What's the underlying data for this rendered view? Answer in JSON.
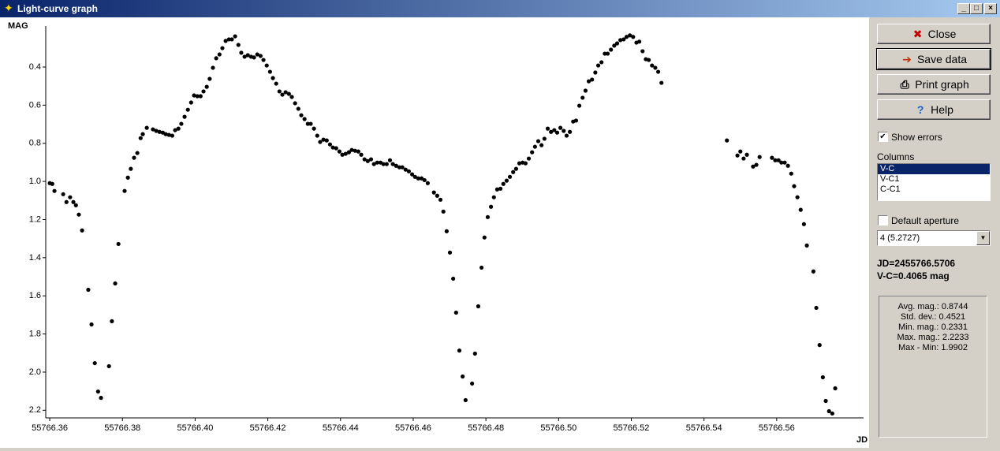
{
  "window": {
    "title": "Light-curve graph"
  },
  "chart_data": {
    "type": "scatter",
    "ylabel": "MAG",
    "xlabel": "JD",
    "color": "#000000",
    "xlim": [
      55766.3589,
      55766.5839
    ],
    "ylim": [
      2.24,
      0.185
    ],
    "xticks": [
      55766.36,
      55766.38,
      {
        "value": 55766.4,
        "label": "55766.40"
      },
      55766.42,
      55766.44,
      55766.46,
      55766.48,
      {
        "value": 55766.5,
        "label": "55766.50"
      },
      55766.52,
      55766.54,
      55766.56
    ],
    "yticks": [
      0.4,
      0.6,
      0.8,
      {
        "value": 1,
        "label": "1.0"
      },
      1.2,
      1.4,
      1.6,
      1.8,
      {
        "value": 2,
        "label": "2.0"
      },
      2.2
    ],
    "x": [
      55766.36,
      55766.3607,
      55766.3613,
      55766.3637,
      55766.3646,
      55766.3656,
      55766.3665,
      55766.3672,
      55766.368,
      55766.3689,
      55766.3706,
      55766.3715,
      55766.3724,
      55766.3733,
      55766.3741,
      55766.3763,
      55766.3771,
      55766.378,
      55766.3789,
      55766.3806,
      55766.3815,
      55766.3823,
      55766.3832,
      55766.3841,
      55766.385,
      55766.3856,
      55766.3867,
      55766.3884,
      55766.3893,
      55766.3902,
      55766.3911,
      55766.3919,
      55766.3928,
      55766.3937,
      55766.3945,
      55766.3954,
      55766.3962,
      55766.3971,
      55766.398,
      55766.3989,
      55766.3997,
      55766.4006,
      55766.4015,
      55766.4023,
      55766.4032,
      55766.404,
      55766.4049,
      55766.4058,
      55766.4067,
      55766.4075,
      55766.4084,
      55766.4093,
      55766.4101,
      55766.411,
      55766.4119,
      55766.4127,
      55766.4136,
      55766.4145,
      55766.4154,
      55766.4162,
      55766.4171,
      55766.418,
      55766.4188,
      55766.4197,
      55766.4206,
      55766.4214,
      55766.4223,
      55766.4232,
      55766.424,
      55766.4249,
      55766.4258,
      55766.4266,
      55766.4275,
      55766.4284,
      55766.4292,
      55766.4301,
      55766.431,
      55766.4318,
      55766.4327,
      55766.4336,
      55766.4344,
      55766.4353,
      55766.4362,
      55766.4371,
      55766.4379,
      55766.4388,
      55766.4397,
      55766.4405,
      55766.4414,
      55766.4423,
      55766.4431,
      55766.444,
      55766.4449,
      55766.4457,
      55766.4466,
      55766.4475,
      55766.4484,
      55766.4492,
      55766.4501,
      55766.451,
      55766.4518,
      55766.4527,
      55766.4536,
      55766.4544,
      55766.4553,
      55766.4562,
      55766.457,
      55766.4579,
      55766.4588,
      55766.4597,
      55766.4605,
      55766.4614,
      55766.4623,
      55766.4631,
      55766.464,
      55766.4657,
      55766.4666,
      55766.4675,
      55766.4683,
      55766.4692,
      55766.4701,
      55766.471,
      55766.4718,
      55766.4727,
      55766.4736,
      55766.4744,
      55766.4762,
      55766.477,
      55766.4779,
      55766.4788,
      55766.4796,
      55766.4805,
      55766.4814,
      55766.4822,
      55766.4831,
      55766.484,
      55766.4848,
      55766.4857,
      55766.4866,
      55766.4875,
      55766.4883,
      55766.4892,
      55766.4901,
      55766.4909,
      55766.4918,
      55766.4927,
      55766.4935,
      55766.4944,
      55766.4953,
      55766.4961,
      55766.497,
      55766.4979,
      55766.4988,
      55766.4996,
      55766.5005,
      55766.5014,
      55766.5022,
      55766.5031,
      55766.504,
      55766.5048,
      55766.5057,
      55766.5066,
      55766.5074,
      55766.5083,
      55766.5092,
      55766.5101,
      55766.5109,
      55766.5118,
      55766.5127,
      55766.5135,
      55766.5144,
      55766.5153,
      55766.5161,
      55766.517,
      55766.5179,
      55766.5187,
      55766.5196,
      55766.5205,
      55766.5214,
      55766.5222,
      55766.5231,
      55766.524,
      55766.5248,
      55766.5257,
      55766.5266,
      55766.5274,
      55766.5283,
      55766.5463,
      55766.5492,
      55766.55,
      55766.5509,
      55766.5518,
      55766.5535,
      55766.5544,
      55766.5553,
      55766.5587,
      55766.5596,
      55766.5605,
      55766.5613,
      55766.5622,
      55766.5631,
      55766.564,
      55766.5648,
      55766.5657,
      55766.5666,
      55766.5675,
      55766.5683,
      55766.5701,
      55766.5709,
      55766.5718,
      55766.5727,
      55766.5735,
      55766.5744,
      55766.5753,
      55766.5761
    ],
    "values": [
      1.009,
      1.013,
      1.05,
      1.067,
      1.108,
      1.083,
      1.108,
      1.125,
      1.174,
      1.257,
      1.568,
      1.75,
      1.953,
      2.102,
      2.135,
      1.969,
      1.733,
      1.535,
      1.328,
      1.05,
      0.98,
      0.934,
      0.876,
      0.851,
      0.773,
      0.752,
      0.719,
      0.727,
      0.735,
      0.74,
      0.744,
      0.752,
      0.756,
      0.76,
      0.731,
      0.723,
      0.698,
      0.661,
      0.624,
      0.586,
      0.549,
      0.553,
      0.553,
      0.528,
      0.504,
      0.462,
      0.404,
      0.354,
      0.334,
      0.301,
      0.263,
      0.255,
      0.255,
      0.239,
      0.284,
      0.325,
      0.346,
      0.338,
      0.346,
      0.35,
      0.334,
      0.342,
      0.363,
      0.392,
      0.425,
      0.458,
      0.487,
      0.528,
      0.545,
      0.532,
      0.541,
      0.557,
      0.59,
      0.619,
      0.653,
      0.673,
      0.698,
      0.698,
      0.723,
      0.76,
      0.793,
      0.781,
      0.785,
      0.806,
      0.822,
      0.826,
      0.843,
      0.86,
      0.855,
      0.847,
      0.835,
      0.839,
      0.843,
      0.86,
      0.884,
      0.893,
      0.884,
      0.909,
      0.901,
      0.901,
      0.909,
      0.909,
      0.889,
      0.909,
      0.918,
      0.926,
      0.926,
      0.938,
      0.947,
      0.963,
      0.976,
      0.984,
      0.984,
      0.993,
      1.009,
      1.058,
      1.075,
      1.096,
      1.158,
      1.261,
      1.373,
      1.51,
      1.688,
      1.887,
      2.023,
      2.147,
      2.06,
      1.903,
      1.655,
      1.452,
      1.294,
      1.187,
      1.133,
      1.083,
      1.042,
      1.038,
      1.013,
      0.996,
      0.976,
      0.951,
      0.934,
      0.905,
      0.901,
      0.905,
      0.88,
      0.847,
      0.818,
      0.789,
      0.81,
      0.776,
      0.723,
      0.74,
      0.731,
      0.744,
      0.719,
      0.735,
      0.76,
      0.74,
      0.686,
      0.681,
      0.603,
      0.561,
      0.524,
      0.475,
      0.466,
      0.429,
      0.392,
      0.375,
      0.33,
      0.33,
      0.309,
      0.288,
      0.276,
      0.259,
      0.255,
      0.242,
      0.234,
      0.242,
      0.272,
      0.267,
      0.317,
      0.359,
      0.363,
      0.392,
      0.404,
      0.425,
      0.483,
      0.785,
      0.864,
      0.843,
      0.88,
      0.86,
      0.922,
      0.913,
      0.872,
      0.876,
      0.889,
      0.889,
      0.901,
      0.901,
      0.918,
      0.959,
      1.025,
      1.083,
      1.149,
      1.224,
      1.336,
      1.472,
      1.663,
      1.858,
      2.027,
      2.151,
      2.205,
      2.217,
      2.085
    ]
  },
  "panel": {
    "buttons": [
      "Close",
      "Save data",
      "Print graph",
      "Help"
    ],
    "show_errors": "Show errors",
    "columns_label": "Columns",
    "columns": [
      "V-C",
      "V-C1",
      "C-C1"
    ],
    "default_aperture": "Default aperture",
    "aperture": "4 (5.2727)",
    "jd_readout": "JD=2455766.5706",
    "value_readout": "V-C=0.4065 mag",
    "stats": [
      "Avg. mag.: 0.8744",
      "Std. dev.: 0.4521",
      "Min. mag.: 0.2331",
      "Max. mag.: 2.2233",
      "Max - Min: 1.9902"
    ]
  }
}
